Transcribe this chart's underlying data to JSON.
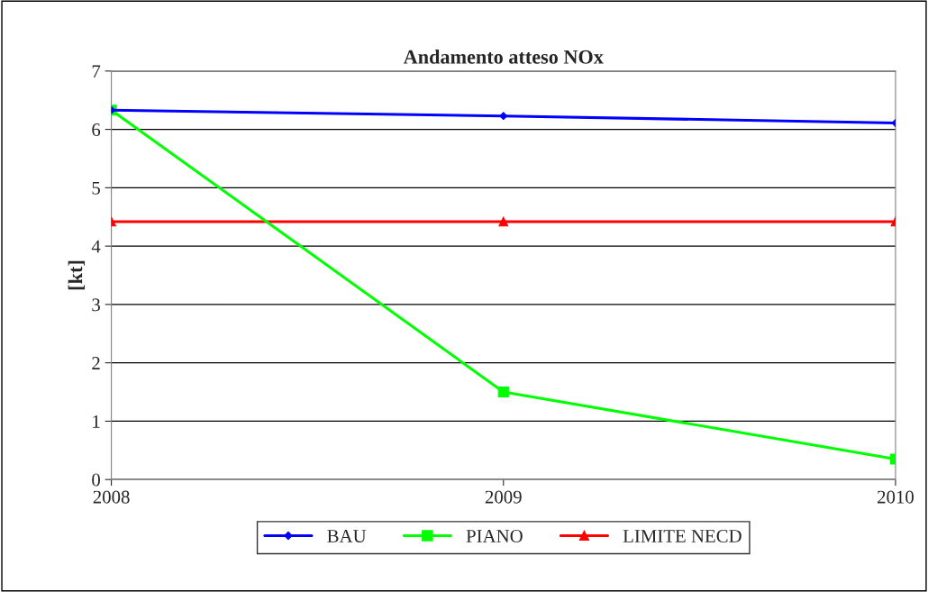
{
  "chart_data": {
    "type": "line",
    "title": "Andamento atteso NOx",
    "ylabel": "[kt]",
    "x": [
      2008,
      2009,
      2010
    ],
    "series": [
      {
        "name": "BAU",
        "color": "#0000ff",
        "marker": "diamond",
        "values": [
          6.33,
          6.23,
          6.11
        ]
      },
      {
        "name": "PIANO",
        "color": "#00ff00",
        "marker": "square",
        "values": [
          6.33,
          1.5,
          0.35
        ]
      },
      {
        "name": "LIMITE NECD",
        "color": "#ff0000",
        "marker": "triangle",
        "values": [
          4.42,
          4.42,
          4.42
        ]
      }
    ],
    "xlim": [
      2008,
      2010
    ],
    "xticks": [
      2008,
      2009,
      2010
    ],
    "ylim": [
      0,
      7
    ],
    "yticks": [
      0,
      1,
      2,
      3,
      4,
      5,
      6,
      7
    ],
    "grid": "y",
    "legend": "bottom",
    "line_style": "solid"
  }
}
